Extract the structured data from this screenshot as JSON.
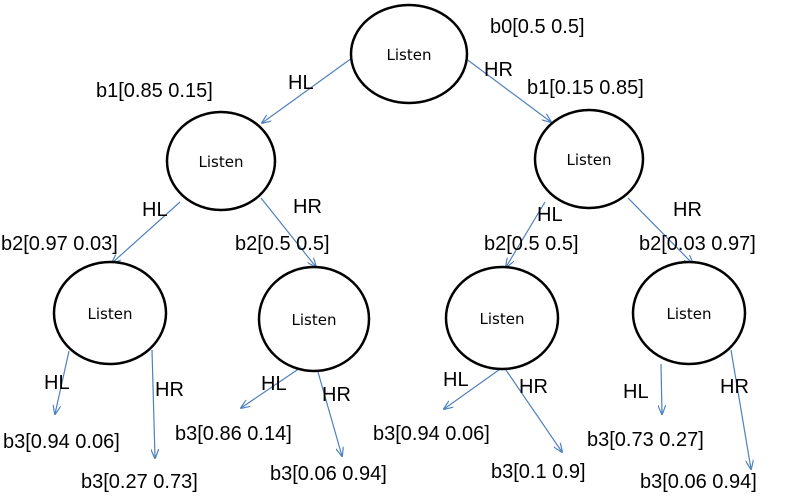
{
  "nodes": {
    "root": {
      "label": "Listen"
    },
    "l1": {
      "label": "Listen"
    },
    "r1": {
      "label": "Listen"
    },
    "l1l": {
      "label": "Listen"
    },
    "l1r": {
      "label": "Listen"
    },
    "r1l": {
      "label": "Listen"
    },
    "r1r": {
      "label": "Listen"
    }
  },
  "edges": {
    "root_l1": "HL",
    "root_r1": "HR",
    "l1_l1l": "HL",
    "l1_l1r": "HR",
    "r1_r1l": "HL",
    "r1_r1r": "HR",
    "l1l_a": "HL",
    "l1l_b": "HR",
    "l1r_a": "HL",
    "l1r_b": "HR",
    "r1l_a": "HL",
    "r1l_b": "HR",
    "r1r_a": "HL",
    "r1r_b": "HR"
  },
  "beliefs": {
    "b0": "b0[0.5 0.5]",
    "b1_left": "b1[0.85 0.15]",
    "b1_right": "b1[0.15 0.85]",
    "b2_ll": "b2[0.97 0.03]",
    "b2_lr": "b2[0.5 0.5]",
    "b2_rl": "b2[0.5 0.5]",
    "b2_rr": "b2[0.03 0.97]",
    "b3_1": "b3[0.94 0.06]",
    "b3_2": "b3[0.27 0.73]",
    "b3_3": "b3[0.86 0.14]",
    "b3_4": "b3[0.06 0.94]",
    "b3_5": "b3[0.94 0.06]",
    "b3_6": "b3[0.1 0.9]",
    "b3_7": "b3[0.73 0.27]",
    "b3_8": "b3[0.06 0.94]"
  },
  "colors": {
    "edge": "#4f81bd",
    "node_outline": "#000000"
  }
}
